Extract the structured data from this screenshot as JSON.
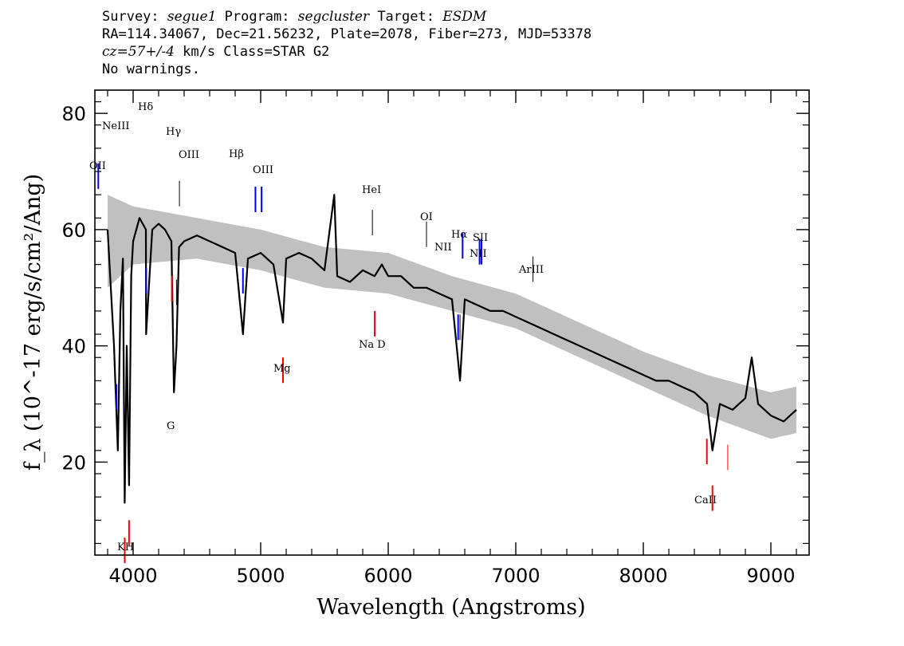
{
  "header": {
    "line1": {
      "survey_label": "Survey: ",
      "survey": "segue1",
      "program_label": " Program: ",
      "program": "segcluster",
      "target_label": " Target: ",
      "target": "ESDM"
    },
    "line2": "RA=114.34067, Dec=21.56232, Plate=2078, Fiber=273, MJD=53378",
    "line3": {
      "cz": "cz=57+/-4",
      "rest": " km/s Class=STAR G2"
    },
    "line4": "No warnings."
  },
  "chart_data": {
    "type": "line",
    "xlabel": "Wavelength (Angstroms)",
    "ylabel": "f_λ (10^-17 erg/s/cm²/Ang)",
    "xlim": [
      3700,
      9300
    ],
    "ylim": [
      4,
      84
    ],
    "x_ticks": [
      4000,
      5000,
      6000,
      7000,
      8000,
      9000
    ],
    "y_ticks": [
      20,
      40,
      60,
      80
    ],
    "series": [
      {
        "role": "flux",
        "color": "#000000",
        "x": [
          3800,
          3850,
          3880,
          3900,
          3920,
          3934,
          3950,
          3968,
          3985,
          4000,
          4050,
          4100,
          4102,
          4150,
          4200,
          4250,
          4300,
          4320,
          4340,
          4360,
          4400,
          4500,
          4600,
          4700,
          4800,
          4861,
          4900,
          5000,
          5100,
          5175,
          5200,
          5300,
          5400,
          5500,
          5577,
          5600,
          5700,
          5800,
          5893,
          5950,
          6000,
          6100,
          6200,
          6300,
          6400,
          6500,
          6563,
          6600,
          6700,
          6800,
          6900,
          7000,
          7100,
          7200,
          7300,
          7400,
          7500,
          7600,
          7700,
          7800,
          7900,
          8000,
          8100,
          8200,
          8300,
          8400,
          8500,
          8542,
          8600,
          8700,
          8800,
          8850,
          8900,
          9000,
          9100,
          9200
        ],
        "y": [
          60,
          40,
          22,
          46,
          55,
          13,
          40,
          16,
          52,
          58,
          62,
          60,
          42,
          60,
          61,
          60,
          58,
          32,
          40,
          57,
          58,
          59,
          58,
          57,
          56,
          42,
          55,
          56,
          54,
          44,
          55,
          56,
          55,
          53,
          66,
          52,
          51,
          53,
          52,
          54,
          52,
          52,
          50,
          50,
          49,
          48,
          34,
          48,
          47,
          46,
          46,
          45,
          44,
          43,
          42,
          41,
          40,
          39,
          38,
          37,
          36,
          35,
          34,
          34,
          33,
          32,
          30,
          22,
          30,
          29,
          31,
          38,
          30,
          28,
          27,
          29
        ]
      },
      {
        "role": "error band",
        "color": "#c0c0c0",
        "x": [
          3800,
          4000,
          4500,
          5000,
          5500,
          6000,
          6500,
          7000,
          7500,
          8000,
          8500,
          9000,
          9200
        ],
        "y_upper": [
          66,
          64,
          62,
          60,
          57,
          56,
          52,
          49,
          44,
          39,
          35,
          32,
          33
        ],
        "y_lower": [
          50,
          54,
          55,
          53,
          50,
          49,
          46,
          43,
          38,
          33,
          28,
          24,
          25
        ]
      }
    ],
    "emission_lines": [
      {
        "name": "OII",
        "x": 3727,
        "color": "#0000ff"
      },
      {
        "name": "NeIII",
        "x": 3869,
        "color": "#0000ff"
      },
      {
        "name": "Hδ",
        "x": 4102,
        "color": "#0000ff"
      },
      {
        "name": "Hγ",
        "x": 4340,
        "color": "#000000"
      },
      {
        "name": "OIII",
        "x": 4363,
        "color": "#000000"
      },
      {
        "name": "Hβ",
        "x": 4861,
        "color": "#0000ff"
      },
      {
        "name": "OIII",
        "x": 4959,
        "color": "#0000ff"
      },
      {
        "name": "OIII",
        "x": 5007,
        "color": "#0000ff"
      },
      {
        "name": "HeI",
        "x": 5876,
        "color": "#000000"
      },
      {
        "name": "OI",
        "x": 6300,
        "color": "#000000"
      },
      {
        "name": "NII",
        "x": 6548,
        "color": "#0000ff"
      },
      {
        "name": "Hα",
        "x": 6563,
        "color": "#000000"
      },
      {
        "name": "NII",
        "x": 6583,
        "color": "#0000ff"
      },
      {
        "name": "SII",
        "x": 6716,
        "color": "#0000ff"
      },
      {
        "name": "SII",
        "x": 6731,
        "color": "#0000ff"
      },
      {
        "name": "ArIII",
        "x": 7135,
        "color": "#000000"
      }
    ],
    "absorption_lines": [
      {
        "name": "K",
        "x": 3934,
        "color": "#ff0000"
      },
      {
        "name": "H",
        "x": 3968,
        "color": "#ff0000"
      },
      {
        "name": "G",
        "x": 4304,
        "color": "#ff0000"
      },
      {
        "name": "Mg",
        "x": 5175,
        "color": "#ff0000"
      },
      {
        "name": "Na D",
        "x": 5894,
        "color": "#ff0000"
      },
      {
        "name": "CaII",
        "x": 8498,
        "color": "#ff0000"
      },
      {
        "name": "CaII",
        "x": 8542,
        "color": "#ff0000"
      },
      {
        "name": "",
        "x": 8662,
        "color": "#ff0000"
      }
    ],
    "line_labels": {
      "oii": "OII",
      "neiii": "NeIII",
      "hdelta": "Hδ",
      "hgamma": "Hγ",
      "oiii_a": "OIII",
      "hbeta": "Hβ",
      "oiii_b": "OIII",
      "hei": "HeI",
      "oi": "OI",
      "nii_a": "NII",
      "halpha": "Hα",
      "sii": "SII",
      "nii_b": "NII",
      "ariii": "ArIII",
      "kh": "KH",
      "g": "G",
      "mg": "Mg",
      "nad": "Na D",
      "caii": "CaII"
    }
  }
}
